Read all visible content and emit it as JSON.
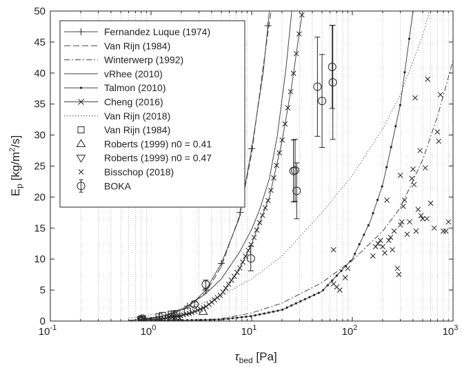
{
  "chart_data": {
    "type": "scatter",
    "xlabel": {
      "main": "τ",
      "sub": "bed",
      "unit": " [Pa]"
    },
    "ylabel": {
      "main": "E",
      "sub": "p",
      "unit_pre": " [kg/m",
      "sup": "2",
      "unit_post": "/s]"
    },
    "xscale": "log",
    "xlim": [
      0.1,
      1000
    ],
    "ylim": [
      0,
      50
    ],
    "grid": "x-minor-dotted",
    "legend_position": "top-left",
    "x_ticks": [
      {
        "base": "10",
        "exp": "-1"
      },
      {
        "base": "10",
        "exp": "0"
      },
      {
        "base": "10",
        "exp": "1"
      },
      {
        "base": "10",
        "exp": "2"
      },
      {
        "base": "10",
        "exp": "3"
      }
    ],
    "y_ticks": [
      "0",
      "5",
      "10",
      "15",
      "20",
      "25",
      "30",
      "35",
      "40",
      "45",
      "50"
    ],
    "lines": [
      {
        "name": "Fernandez Luque (1974)",
        "style": "solid",
        "marker": "plus",
        "points": [
          [
            0.6,
            0.1
          ],
          [
            0.9,
            0.35
          ],
          [
            1.2,
            0.7
          ],
          [
            1.6,
            1.2
          ],
          [
            2.2,
            2.2
          ],
          [
            2.7,
            3.2
          ],
          [
            3.5,
            5.0
          ],
          [
            5,
            9.3
          ],
          [
            7.5,
            16.5
          ],
          [
            10,
            27.8
          ],
          [
            13,
            40
          ],
          [
            15,
            50
          ]
        ],
        "marker_x": [
          0.55,
          0.8,
          1.2,
          1.6,
          2.3,
          3.5,
          5.0,
          7.7,
          10,
          14.5
        ]
      },
      {
        "name": "Van Rijn (1984)",
        "style": "dashed",
        "marker": "none",
        "points": [
          [
            0.6,
            0.1
          ],
          [
            0.9,
            0.3
          ],
          [
            1.2,
            0.6
          ],
          [
            1.6,
            1.1
          ],
          [
            2.2,
            2.0
          ],
          [
            3.5,
            4.6
          ],
          [
            5,
            8.8
          ],
          [
            7.5,
            16.8
          ],
          [
            10,
            27
          ],
          [
            13,
            41
          ],
          [
            15.6,
            50
          ]
        ]
      },
      {
        "name": "Winterwerp (1992)",
        "style": "dashdot",
        "marker": "none",
        "points": [
          [
            3,
            0.1
          ],
          [
            5,
            0.4
          ],
          [
            10,
            1.3
          ],
          [
            20,
            2.9
          ],
          [
            50,
            6.2
          ],
          [
            100,
            9.8
          ],
          [
            200,
            14.5
          ],
          [
            300,
            18.3
          ],
          [
            500,
            26.0
          ],
          [
            700,
            33.0
          ],
          [
            1000,
            42.0
          ]
        ]
      },
      {
        "name": "vRhee (2010)",
        "style": "solid",
        "marker": "none",
        "points": [
          [
            0.6,
            0.1
          ],
          [
            0.9,
            0.3
          ],
          [
            1.3,
            0.8
          ],
          [
            2.2,
            2.2
          ],
          [
            3.5,
            4.4
          ],
          [
            5,
            6.8
          ],
          [
            7.5,
            11
          ],
          [
            10,
            14.8
          ],
          [
            12,
            18
          ],
          [
            15,
            23
          ],
          [
            18,
            30
          ],
          [
            22,
            41
          ],
          [
            25,
            50
          ]
        ]
      },
      {
        "name": "Talmon (2010)",
        "style": "solid",
        "marker": "dot",
        "points": [
          [
            1,
            0.02
          ],
          [
            5,
            0.25
          ],
          [
            10,
            0.8
          ],
          [
            20,
            1.8
          ],
          [
            50,
            4.8
          ],
          [
            100,
            10
          ],
          [
            150,
            16
          ],
          [
            200,
            22
          ],
          [
            250,
            29
          ],
          [
            300,
            35
          ],
          [
            350,
            43
          ],
          [
            400,
            50
          ]
        ],
        "marker_step": 0.045
      },
      {
        "name": "Cheng (2016)",
        "style": "solid",
        "marker": "x",
        "points": [
          [
            0.8,
            0.1
          ],
          [
            1.2,
            0.3
          ],
          [
            1.8,
            0.7
          ],
          [
            2.6,
            1.4
          ],
          [
            3.5,
            2.3
          ],
          [
            5,
            4.3
          ],
          [
            7.5,
            8.3
          ],
          [
            10,
            12.5
          ],
          [
            15,
            20
          ],
          [
            20,
            29
          ],
          [
            25,
            38
          ],
          [
            30,
            47
          ],
          [
            32,
            50
          ]
        ],
        "marker_step": 0.028
      },
      {
        "name": "Van Rijn (2018)",
        "style": "dotted",
        "marker": "none",
        "points": [
          [
            0.6,
            0.5
          ],
          [
            1,
            1.0
          ],
          [
            2,
            1.9
          ],
          [
            3,
            2.7
          ],
          [
            5,
            4.1
          ],
          [
            10,
            6.8
          ],
          [
            20,
            10.5
          ],
          [
            50,
            17.5
          ],
          [
            100,
            23.5
          ],
          [
            200,
            31
          ],
          [
            300,
            36.5
          ],
          [
            500,
            46
          ],
          [
            580,
            50
          ]
        ]
      }
    ],
    "markers": [
      {
        "name": "Van Rijn (1984)",
        "marker": "square",
        "points": [
          [
            0.8,
            0.3
          ],
          [
            1.2,
            0.7
          ],
          [
            1.3,
            0.9
          ],
          [
            1.6,
            1.1
          ],
          [
            1.8,
            1.2
          ],
          [
            2.3,
            1.6
          ]
        ]
      },
      {
        "name": "Roberts (1999) n0 = 0.41",
        "marker": "triangle-up",
        "points": [
          [
            0.8,
            0.2
          ],
          [
            1.6,
            0.5
          ],
          [
            1.8,
            0.7
          ],
          [
            3.3,
            1.5
          ]
        ]
      },
      {
        "name": "Roberts (1999) n0 = 0.47",
        "marker": "triangle-down",
        "points": [
          [
            0.8,
            0.1
          ],
          [
            1.6,
            0.3
          ],
          [
            1.8,
            0.4
          ]
        ]
      },
      {
        "name": "Bisschop (2018)",
        "marker": "x",
        "points": [
          [
            65,
            6
          ],
          [
            70,
            5.5
          ],
          [
            75,
            5
          ],
          [
            85,
            7
          ],
          [
            90,
            8.5
          ],
          [
            65,
            11.5
          ],
          [
            160,
            10.5
          ],
          [
            170,
            12
          ],
          [
            180,
            12.5
          ],
          [
            190,
            13
          ],
          [
            200,
            12
          ],
          [
            210,
            11
          ],
          [
            220,
            19.5
          ],
          [
            230,
            13
          ],
          [
            250,
            11.5
          ],
          [
            260,
            14.5
          ],
          [
            280,
            8.5
          ],
          [
            290,
            7.5
          ],
          [
            300,
            15.5
          ],
          [
            310,
            16
          ],
          [
            330,
            19.5
          ],
          [
            320,
            18.5
          ],
          [
            350,
            14
          ],
          [
            370,
            16
          ],
          [
            390,
            23
          ],
          [
            400,
            24.5
          ],
          [
            410,
            22
          ],
          [
            420,
            36
          ],
          [
            430,
            14.5
          ],
          [
            450,
            18
          ],
          [
            470,
            27.5
          ],
          [
            480,
            17
          ],
          [
            500,
            16.5
          ],
          [
            550,
            16.5
          ],
          [
            600,
            19
          ],
          [
            650,
            15
          ],
          [
            700,
            30.5
          ],
          [
            720,
            29
          ],
          [
            750,
            36.5
          ],
          [
            800,
            14.5
          ],
          [
            850,
            14.5
          ],
          [
            900,
            16
          ],
          [
            300,
            23.5
          ],
          [
            240,
            13.5
          ],
          [
            560,
            39
          ],
          [
            530,
            24.7
          ],
          [
            500,
            16.5
          ]
        ]
      },
      {
        "name": "BOKA",
        "marker": "circle-errorbar",
        "points": [
          {
            "x": 0.82,
            "y": 0.4,
            "err": 0.3
          },
          {
            "x": 2.7,
            "y": 2.7,
            "err": 0.4
          },
          {
            "x": 3.5,
            "y": 5.9,
            "err": 0.7
          },
          {
            "x": 9.8,
            "y": 10.1,
            "err": 2.0
          },
          {
            "x": 26,
            "y": 24.2,
            "err": 5.0
          },
          {
            "x": 27,
            "y": 24.3,
            "err": 5.0
          },
          {
            "x": 28,
            "y": 21,
            "err": 4.5
          },
          {
            "x": 45,
            "y": 37.8,
            "err": 8.0
          },
          {
            "x": 50,
            "y": 35.5,
            "err": 7.5
          },
          {
            "x": 63,
            "y": 41,
            "err": 6.7
          },
          {
            "x": 64,
            "y": 38.5,
            "err": 9.2
          }
        ]
      }
    ]
  }
}
